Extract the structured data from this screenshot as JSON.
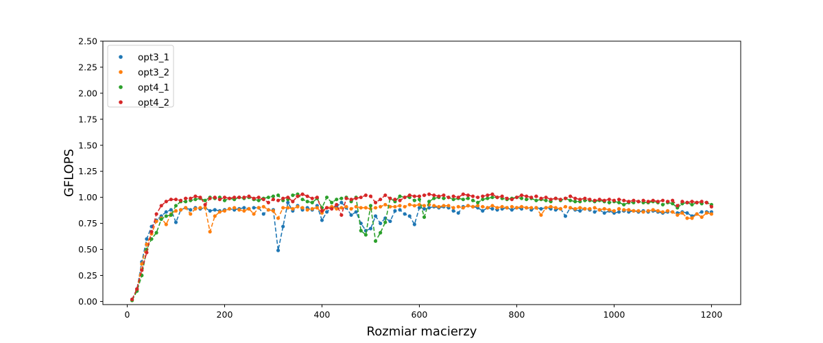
{
  "chart_data": {
    "type": "line",
    "title": "",
    "xlabel": "Rozmiar macierzy",
    "ylabel": "GFLOPS",
    "xlim": [
      -50,
      1260
    ],
    "ylim": [
      -0.03,
      2.5
    ],
    "xticks": [
      0,
      200,
      400,
      600,
      800,
      1000,
      1200
    ],
    "yticks": [
      0.0,
      0.25,
      0.5,
      0.75,
      1.0,
      1.25,
      1.5,
      1.75,
      2.0,
      2.25,
      2.5
    ],
    "xtick_labels": [
      "0",
      "200",
      "400",
      "600",
      "800",
      "1000",
      "1200"
    ],
    "ytick_labels": [
      "0.00",
      "0.25",
      "0.50",
      "0.75",
      "1.00",
      "1.25",
      "1.50",
      "1.75",
      "2.00",
      "2.25",
      "2.50"
    ],
    "grid": false,
    "legend_position": "top-left",
    "line_style": "dashed",
    "x": [
      10,
      20,
      30,
      40,
      50,
      60,
      70,
      80,
      90,
      100,
      110,
      120,
      130,
      140,
      150,
      160,
      170,
      180,
      190,
      200,
      210,
      220,
      230,
      240,
      250,
      260,
      270,
      280,
      290,
      300,
      310,
      320,
      330,
      340,
      350,
      360,
      370,
      380,
      390,
      400,
      410,
      420,
      430,
      440,
      450,
      460,
      470,
      480,
      490,
      500,
      510,
      520,
      530,
      540,
      550,
      560,
      570,
      580,
      590,
      600,
      610,
      620,
      630,
      640,
      650,
      660,
      670,
      680,
      690,
      700,
      710,
      720,
      730,
      740,
      750,
      760,
      770,
      780,
      790,
      800,
      810,
      820,
      830,
      840,
      850,
      860,
      870,
      880,
      890,
      900,
      910,
      920,
      930,
      940,
      950,
      960,
      970,
      980,
      990,
      1000,
      1010,
      1020,
      1030,
      1040,
      1050,
      1060,
      1070,
      1080,
      1090,
      1100,
      1110,
      1120,
      1130,
      1140,
      1150,
      1160,
      1170,
      1180,
      1190,
      1200
    ],
    "series": [
      {
        "name": "opt3_1",
        "color": "#1f77b4",
        "values": [
          0.02,
          0.12,
          0.38,
          0.6,
          0.72,
          0.78,
          0.82,
          0.86,
          0.88,
          0.76,
          0.88,
          0.9,
          0.88,
          0.9,
          0.89,
          0.9,
          0.87,
          0.88,
          0.87,
          0.88,
          0.89,
          0.88,
          0.89,
          0.9,
          0.89,
          0.9,
          0.9,
          0.84,
          0.88,
          0.88,
          0.49,
          0.72,
          0.95,
          0.87,
          0.92,
          0.88,
          0.9,
          0.88,
          0.92,
          0.78,
          0.86,
          0.9,
          0.91,
          0.95,
          0.9,
          0.83,
          0.86,
          0.75,
          0.68,
          0.7,
          0.82,
          0.75,
          0.8,
          0.77,
          0.87,
          0.88,
          0.84,
          0.82,
          0.74,
          0.9,
          0.89,
          0.9,
          0.91,
          0.9,
          0.91,
          0.9,
          0.87,
          0.85,
          0.91,
          0.92,
          0.91,
          0.9,
          0.87,
          0.9,
          0.89,
          0.88,
          0.89,
          0.9,
          0.88,
          0.9,
          0.89,
          0.9,
          0.88,
          0.9,
          0.89,
          0.9,
          0.89,
          0.88,
          0.89,
          0.82,
          0.9,
          0.88,
          0.87,
          0.89,
          0.88,
          0.86,
          0.88,
          0.85,
          0.87,
          0.85,
          0.86,
          0.87,
          0.86,
          0.87,
          0.86,
          0.87,
          0.86,
          0.87,
          0.86,
          0.85,
          0.86,
          0.86,
          0.85,
          0.86,
          0.85,
          0.82,
          0.84,
          0.86,
          0.86,
          0.86
        ]
      },
      {
        "name": "opt3_2",
        "color": "#ff7f0e",
        "values": [
          0.01,
          0.11,
          0.36,
          0.55,
          0.65,
          0.77,
          0.8,
          0.74,
          0.84,
          0.87,
          0.88,
          0.9,
          0.84,
          0.89,
          0.9,
          0.9,
          0.67,
          0.82,
          0.86,
          0.87,
          0.89,
          0.9,
          0.88,
          0.87,
          0.89,
          0.84,
          0.9,
          0.91,
          0.88,
          0.87,
          0.8,
          0.9,
          0.9,
          0.89,
          0.91,
          0.9,
          0.88,
          0.89,
          0.9,
          0.85,
          0.9,
          0.91,
          0.89,
          0.9,
          0.91,
          0.89,
          0.91,
          0.9,
          0.9,
          0.89,
          0.9,
          0.91,
          0.93,
          0.91,
          0.91,
          0.92,
          0.91,
          0.93,
          0.92,
          0.93,
          0.92,
          0.93,
          0.92,
          0.91,
          0.92,
          0.92,
          0.9,
          0.91,
          0.9,
          0.92,
          0.91,
          0.92,
          0.91,
          0.9,
          0.92,
          0.9,
          0.91,
          0.9,
          0.91,
          0.9,
          0.91,
          0.9,
          0.9,
          0.9,
          0.83,
          0.9,
          0.91,
          0.9,
          0.89,
          0.91,
          0.9,
          0.89,
          0.9,
          0.89,
          0.89,
          0.9,
          0.88,
          0.89,
          0.88,
          0.87,
          0.89,
          0.88,
          0.88,
          0.87,
          0.87,
          0.86,
          0.87,
          0.88,
          0.87,
          0.86,
          0.87,
          0.86,
          0.83,
          0.85,
          0.8,
          0.8,
          0.84,
          0.81,
          0.85,
          0.84
        ]
      },
      {
        "name": "opt4_1",
        "color": "#2ca02c",
        "values": [
          0.01,
          0.1,
          0.25,
          0.5,
          0.6,
          0.66,
          0.79,
          0.82,
          0.83,
          0.92,
          0.96,
          0.96,
          0.97,
          0.98,
          0.99,
          0.97,
          1.0,
          0.99,
          1.0,
          0.97,
          0.99,
          0.98,
          1.0,
          0.99,
          1.0,
          0.98,
          0.97,
          0.99,
          1.0,
          1.01,
          1.02,
          0.97,
          0.98,
          1.02,
          1.03,
          0.98,
          0.96,
          0.95,
          0.99,
          0.9,
          1.0,
          0.95,
          0.98,
          0.99,
          1.0,
          0.96,
          1.0,
          0.68,
          0.64,
          0.92,
          0.58,
          0.66,
          0.76,
          0.99,
          0.96,
          1.01,
          1.0,
          1.0,
          0.97,
          0.98,
          0.81,
          0.96,
          0.99,
          1.0,
          0.99,
          1.0,
          0.98,
          0.99,
          0.98,
          0.99,
          0.97,
          0.95,
          0.98,
          0.99,
          1.0,
          1.0,
          0.99,
          0.98,
          0.99,
          1.0,
          0.99,
          0.98,
          0.99,
          0.97,
          0.98,
          0.97,
          0.96,
          0.99,
          0.97,
          0.99,
          0.97,
          0.96,
          0.96,
          0.97,
          0.97,
          0.96,
          0.97,
          0.96,
          0.95,
          0.96,
          0.95,
          0.93,
          0.95,
          0.95,
          0.96,
          0.95,
          0.95,
          0.96,
          0.95,
          0.93,
          0.95,
          0.94,
          0.9,
          0.94,
          0.95,
          0.93,
          0.95,
          0.94,
          0.95,
          0.93
        ]
      },
      {
        "name": "opt4_2",
        "color": "#d62728",
        "values": [
          0.02,
          0.12,
          0.3,
          0.47,
          0.67,
          0.84,
          0.92,
          0.96,
          0.98,
          0.98,
          0.97,
          0.99,
          0.99,
          1.01,
          1.0,
          0.93,
          0.99,
          1.0,
          0.98,
          1.0,
          0.99,
          1.0,
          1.0,
          1.0,
          1.01,
          0.99,
          1.0,
          0.98,
          0.95,
          0.98,
          0.97,
          0.99,
          1.0,
          0.96,
          1.01,
          1.03,
          1.01,
          0.99,
          1.0,
          0.87,
          0.9,
          0.89,
          0.93,
          0.83,
          0.99,
          0.98,
          0.99,
          1.0,
          1.02,
          1.01,
          0.95,
          0.98,
          1.02,
          0.99,
          0.98,
          0.97,
          1.0,
          1.02,
          1.01,
          1.01,
          1.02,
          1.03,
          1.02,
          1.01,
          1.02,
          1.0,
          1.01,
          1.0,
          1.03,
          1.02,
          1.01,
          1.0,
          1.01,
          1.02,
          1.03,
          1.0,
          1.01,
          0.99,
          0.98,
          1.0,
          1.02,
          1.01,
          1.0,
          1.01,
          0.99,
          1.0,
          0.98,
          0.99,
          0.98,
          0.99,
          1.01,
          0.99,
          0.98,
          0.99,
          0.98,
          0.97,
          0.98,
          0.97,
          0.98,
          0.97,
          0.98,
          0.97,
          0.96,
          0.97,
          0.96,
          0.97,
          0.96,
          0.97,
          0.96,
          0.97,
          0.96,
          0.97,
          0.92,
          0.96,
          0.95,
          0.96,
          0.95,
          0.96,
          0.95,
          0.91
        ]
      }
    ]
  }
}
